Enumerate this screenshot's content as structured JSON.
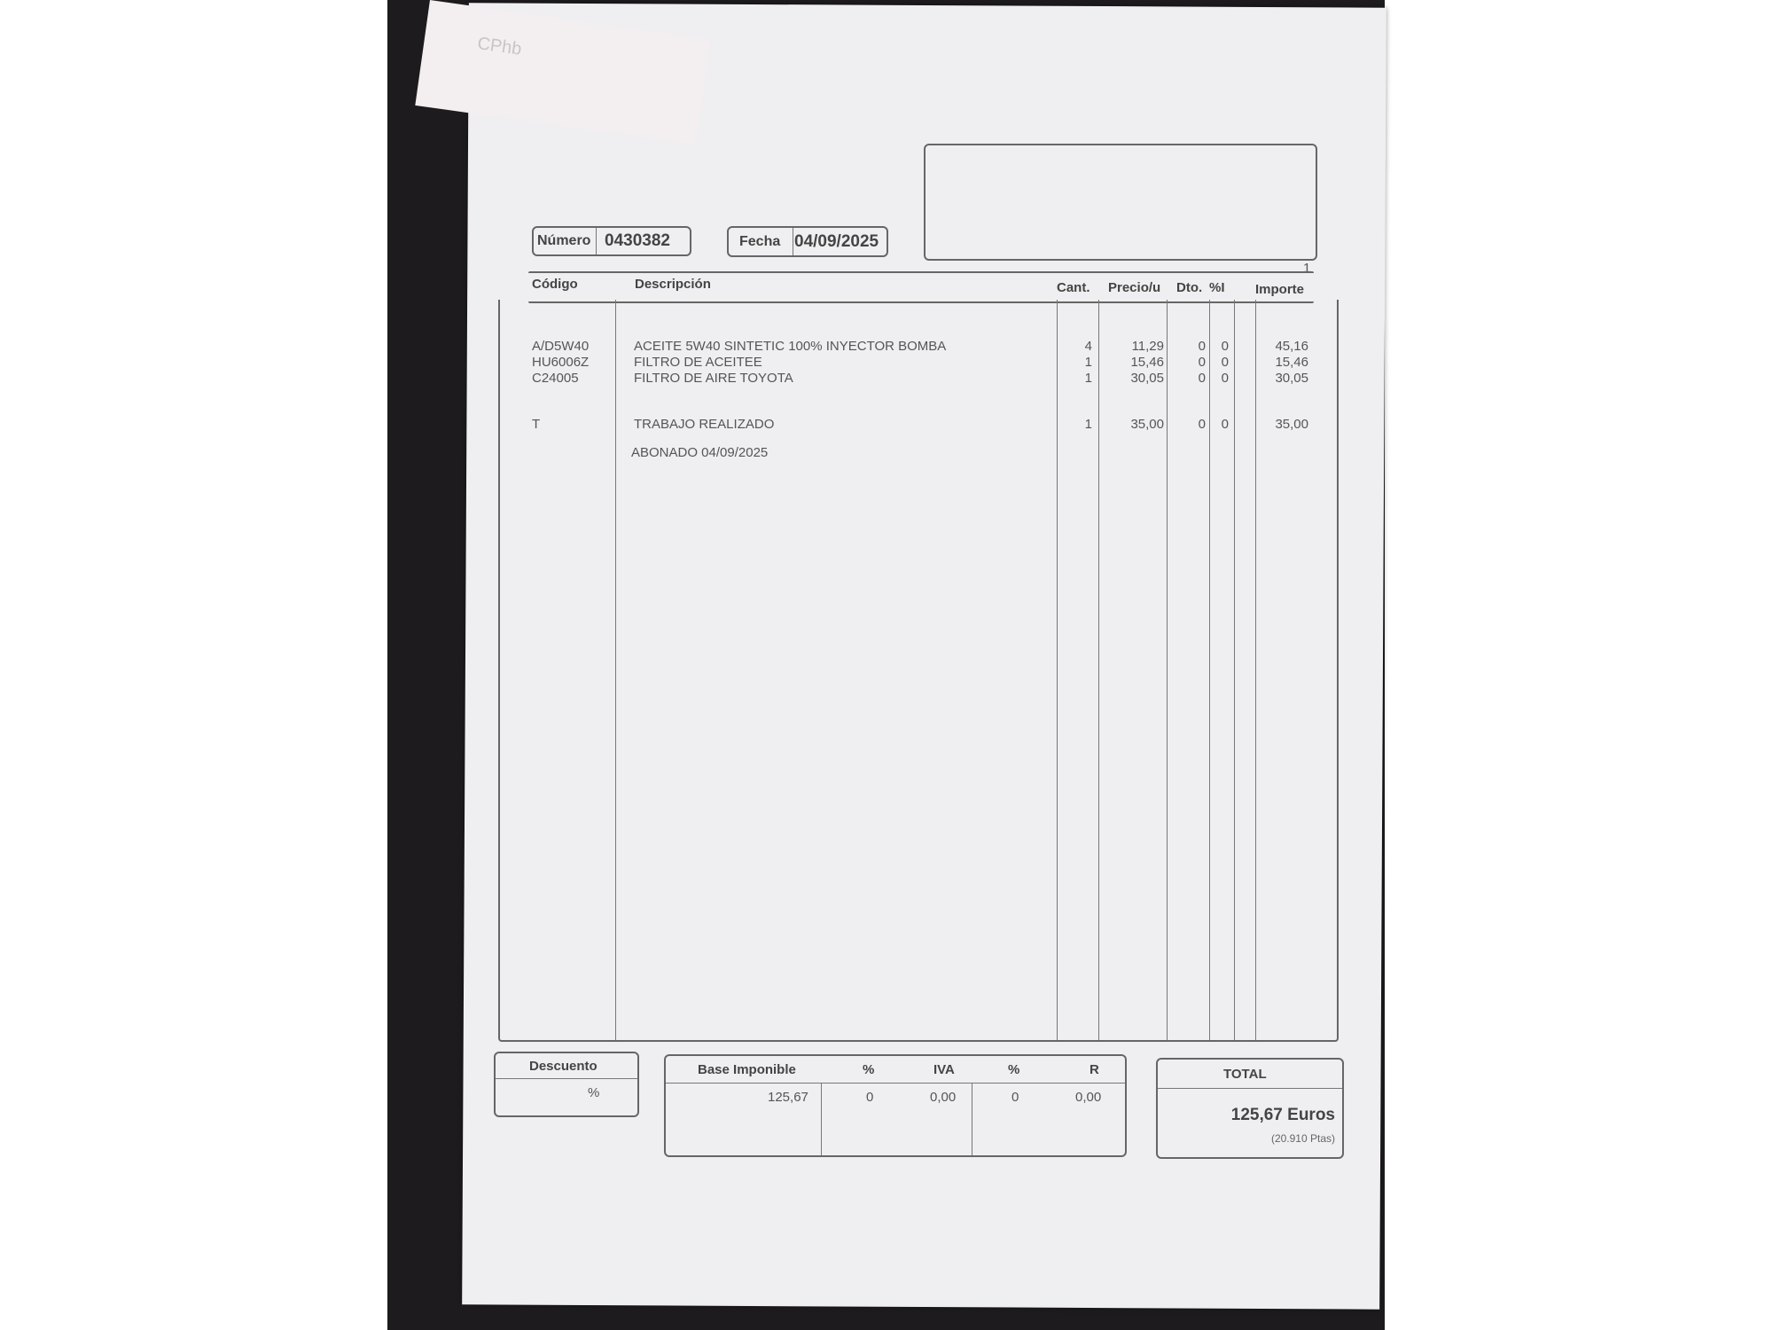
{
  "sticky_note": {
    "text": "CPhb"
  },
  "invoice": {
    "numero_label": "Número",
    "numero": "0430382",
    "fecha_label": "Fecha",
    "fecha": "04/09/2025",
    "page": "1",
    "columns": [
      "Código",
      "Descripción",
      "Cant.",
      "Precio/u",
      "Dto.",
      "%I",
      "Importe"
    ],
    "items": [
      {
        "codigo": "A/D5W40",
        "descripcion": "ACEITE 5W40 SINTETIC 100% INYECTOR BOMBA",
        "cant": "4",
        "precio": "11,29",
        "dto": "0",
        "iva": "0",
        "importe": "45,16"
      },
      {
        "codigo": "HU6006Z",
        "descripcion": "FILTRO DE ACEITEE",
        "cant": "1",
        "precio": "15,46",
        "dto": "0",
        "iva": "0",
        "importe": "15,46"
      },
      {
        "codigo": "C24005",
        "descripcion": "FILTRO DE AIRE TOYOTA",
        "cant": "1",
        "precio": "30,05",
        "dto": "0",
        "iva": "0",
        "importe": "30,05"
      },
      {
        "codigo": "T",
        "descripcion": "TRABAJO REALIZADO",
        "cant": "1",
        "precio": "35,00",
        "dto": "0",
        "iva": "0",
        "importe": "35,00"
      }
    ],
    "note": "ABONADO 04/09/2025",
    "descuento_label": "Descuento",
    "descuento_value": "%",
    "summary_headers": [
      "Base Imponible",
      "%",
      "IVA",
      "%",
      "R"
    ],
    "summary_values": [
      "125,67",
      "0",
      "0,00",
      "0",
      "0,00"
    ],
    "total_label": "TOTAL",
    "total": "125,67 Euros",
    "total_pts": "(20.910 Ptas)"
  }
}
